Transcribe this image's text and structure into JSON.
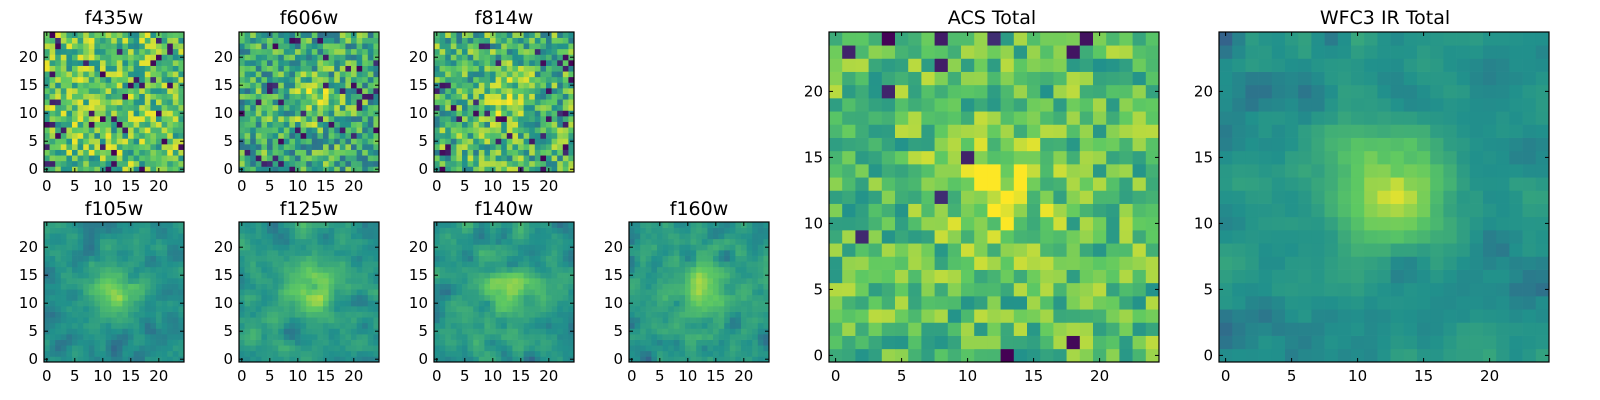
{
  "chart_data": [
    {
      "id": "f435w",
      "type": "heatmap",
      "title": "f435w",
      "grid_size": 25,
      "colormap": "viridis",
      "xticks": [
        "0",
        "5",
        "10",
        "15",
        "20"
      ],
      "yticks": [
        "0",
        "5",
        "10",
        "15",
        "20"
      ],
      "pattern": "noise",
      "seed": 11,
      "base": 0.72,
      "noise": 0.26,
      "dark_spots": 0.06
    },
    {
      "id": "f606w",
      "type": "heatmap",
      "title": "f606w",
      "grid_size": 25,
      "colormap": "viridis",
      "xticks": [
        "0",
        "5",
        "10",
        "15",
        "20"
      ],
      "yticks": [
        "0",
        "5",
        "10",
        "15",
        "20"
      ],
      "pattern": "noise_center",
      "seed": 23,
      "base": 0.62,
      "noise": 0.26,
      "peak": 0.2,
      "dark_spots": 0.05
    },
    {
      "id": "f814w",
      "type": "heatmap",
      "title": "f814w",
      "grid_size": 25,
      "colormap": "viridis",
      "xticks": [
        "0",
        "5",
        "10",
        "15",
        "20"
      ],
      "yticks": [
        "0",
        "5",
        "10",
        "15",
        "20"
      ],
      "pattern": "noise_center",
      "seed": 37,
      "base": 0.66,
      "noise": 0.26,
      "peak": 0.15,
      "dark_spots": 0.06
    },
    {
      "id": "f105w",
      "type": "heatmap",
      "title": "f105w",
      "grid_size": 25,
      "colormap": "viridis",
      "xticks": [
        "0",
        "5",
        "10",
        "15",
        "20"
      ],
      "yticks": [
        "0",
        "5",
        "10",
        "15",
        "20"
      ],
      "pattern": "smooth_center",
      "seed": 41,
      "base": 0.5,
      "noise": 0.18,
      "peak": 0.35,
      "dark_spots": 0.02
    },
    {
      "id": "f125w",
      "type": "heatmap",
      "title": "f125w",
      "grid_size": 25,
      "colormap": "viridis",
      "xticks": [
        "0",
        "5",
        "10",
        "15",
        "20"
      ],
      "yticks": [
        "0",
        "5",
        "10",
        "15",
        "20"
      ],
      "pattern": "smooth_center",
      "seed": 53,
      "base": 0.55,
      "noise": 0.2,
      "peak": 0.3,
      "dark_spots": 0.02
    },
    {
      "id": "f140w",
      "type": "heatmap",
      "title": "f140w",
      "grid_size": 25,
      "colormap": "viridis",
      "xticks": [
        "0",
        "5",
        "10",
        "15",
        "20"
      ],
      "yticks": [
        "0",
        "5",
        "10",
        "15",
        "20"
      ],
      "pattern": "smooth_center",
      "seed": 67,
      "base": 0.55,
      "noise": 0.2,
      "peak": 0.3,
      "dark_spots": 0.02
    },
    {
      "id": "f160w",
      "type": "heatmap",
      "title": "f160w",
      "grid_size": 25,
      "colormap": "viridis",
      "xticks": [
        "0",
        "5",
        "10",
        "15",
        "20"
      ],
      "yticks": [
        "0",
        "5",
        "10",
        "15",
        "20"
      ],
      "pattern": "smooth_center",
      "seed": 79,
      "base": 0.55,
      "noise": 0.2,
      "peak": 0.32,
      "dark_spots": 0.03
    },
    {
      "id": "acs-total",
      "type": "heatmap",
      "title": "ACS Total",
      "grid_size": 25,
      "colormap": "viridis",
      "xticks": [
        "0",
        "5",
        "10",
        "15",
        "20"
      ],
      "yticks": [
        "0",
        "5",
        "10",
        "15",
        "20"
      ],
      "pattern": "noise_center",
      "seed": 97,
      "base": 0.7,
      "noise": 0.2,
      "peak": 0.2,
      "dark_spots": 0.03
    },
    {
      "id": "wfc3-ir-total",
      "type": "heatmap",
      "title": "WFC3 IR Total",
      "grid_size": 25,
      "colormap": "viridis",
      "xticks": [
        "0",
        "5",
        "10",
        "15",
        "20"
      ],
      "yticks": [
        "0",
        "5",
        "10",
        "15",
        "20"
      ],
      "pattern": "smooth_center",
      "seed": 113,
      "base": 0.5,
      "noise": 0.14,
      "peak": 0.45,
      "dark_spots": 0.02
    }
  ],
  "colors": {
    "viridis_stops": [
      "#440154",
      "#3b528b",
      "#21918c",
      "#5ec962",
      "#fde725"
    ]
  }
}
